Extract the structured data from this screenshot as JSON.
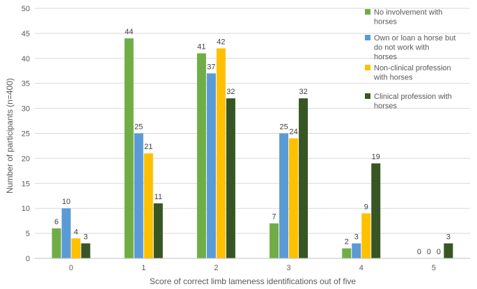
{
  "chart_data": {
    "type": "bar",
    "title": "",
    "xlabel": "Score of correct limb lameness identifications out of five",
    "ylabel": "Number of participants (n=400)",
    "ylim": [
      0,
      50
    ],
    "yticks": [
      0,
      5,
      10,
      15,
      20,
      25,
      30,
      35,
      40,
      45,
      50
    ],
    "grid": true,
    "legend_position": "top-right",
    "categories": [
      "0",
      "1",
      "2",
      "3",
      "4",
      "5"
    ],
    "series": [
      {
        "name": "No involvement with horses",
        "color": "#70ad47",
        "values": [
          6,
          44,
          41,
          7,
          2,
          0
        ]
      },
      {
        "name": "Own or loan a horse but do not work with horses",
        "color": "#5b9bd5",
        "values": [
          10,
          25,
          37,
          25,
          3,
          0
        ]
      },
      {
        "name": "Non-clinical profession with horses",
        "color": "#ffc000",
        "values": [
          4,
          21,
          42,
          24,
          9,
          0
        ]
      },
      {
        "name": "Clinical profession with horses",
        "color": "#375623",
        "values": [
          3,
          11,
          32,
          32,
          19,
          3
        ]
      }
    ],
    "legend_lines": [
      [
        "No involvement with",
        "horses"
      ],
      [
        "Own or loan a horse but",
        "do not work with",
        "horses"
      ],
      [
        "Non-clinical profession",
        "with horses"
      ],
      [
        "Clinical profession with",
        "horses"
      ]
    ]
  }
}
